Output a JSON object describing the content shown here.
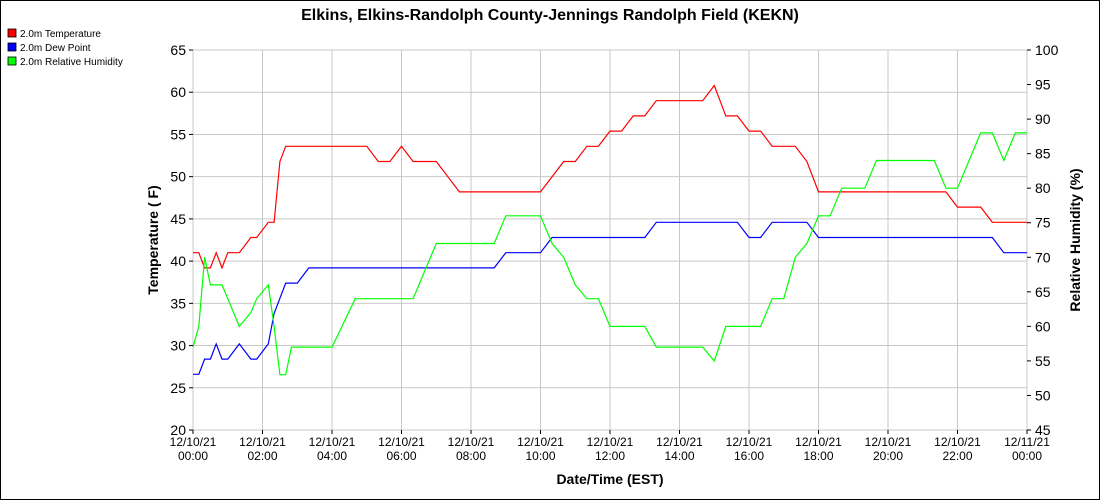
{
  "chart_data": {
    "type": "line",
    "title": "Elkins, Elkins-Randolph County-Jennings Randolph Field (KEKN)",
    "xlabel": "Date/Time (EST)",
    "ylabel": "Temperature ( F)",
    "y2label": "Relative Humidity (%)",
    "ylim": [
      20,
      65
    ],
    "y2lim": [
      45,
      100
    ],
    "yticks": [
      "20",
      "25",
      "30",
      "35",
      "40",
      "45",
      "50",
      "55",
      "60",
      "65"
    ],
    "y2ticks": [
      "45",
      "50",
      "55",
      "60",
      "65",
      "70",
      "75",
      "80",
      "85",
      "90",
      "95",
      "100"
    ],
    "x_ticks": [
      {
        "date": "12/10/21",
        "time": "00:00"
      },
      {
        "date": "12/10/21",
        "time": "02:00"
      },
      {
        "date": "12/10/21",
        "time": "04:00"
      },
      {
        "date": "12/10/21",
        "time": "06:00"
      },
      {
        "date": "12/10/21",
        "time": "08:00"
      },
      {
        "date": "12/10/21",
        "time": "10:00"
      },
      {
        "date": "12/10/21",
        "time": "12:00"
      },
      {
        "date": "12/10/21",
        "time": "14:00"
      },
      {
        "date": "12/10/21",
        "time": "16:00"
      },
      {
        "date": "12/10/21",
        "time": "18:00"
      },
      {
        "date": "12/10/21",
        "time": "20:00"
      },
      {
        "date": "12/10/21",
        "time": "22:00"
      },
      {
        "date": "12/11/21",
        "time": "00:00"
      }
    ],
    "grid": true,
    "legend_position": "top-left",
    "series": [
      {
        "name": "2.0m Temperature",
        "color": "#ff0000",
        "axis": "left",
        "x": [
          "00:00",
          "00:10",
          "00:20",
          "00:30",
          "00:40",
          "00:50",
          "01:00",
          "01:20",
          "01:40",
          "01:50",
          "02:10",
          "02:20",
          "02:30",
          "02:40",
          "02:50",
          "03:00",
          "03:20",
          "04:00",
          "04:40",
          "05:00",
          "05:20",
          "05:40",
          "06:00",
          "06:20",
          "06:40",
          "07:00",
          "07:20",
          "07:40",
          "08:00",
          "08:20",
          "08:40",
          "09:00",
          "09:20",
          "09:40",
          "10:00",
          "10:20",
          "10:40",
          "11:00",
          "11:20",
          "11:40",
          "12:00",
          "12:20",
          "12:40",
          "13:00",
          "13:20",
          "13:40",
          "14:00",
          "14:20",
          "14:40",
          "15:00",
          "15:20",
          "15:40",
          "16:00",
          "16:20",
          "16:40",
          "17:00",
          "17:20",
          "17:40",
          "18:00",
          "18:20",
          "18:40",
          "19:00",
          "19:20",
          "19:40",
          "20:00",
          "20:20",
          "20:40",
          "21:00",
          "21:20",
          "21:40",
          "22:00",
          "22:20",
          "22:40",
          "23:00",
          "23:20",
          "23:40",
          "24:00"
        ],
        "values": [
          41.0,
          41.0,
          39.2,
          39.2,
          41.0,
          39.2,
          41.0,
          41.0,
          42.8,
          42.8,
          44.6,
          44.6,
          51.8,
          53.6,
          53.6,
          53.6,
          53.6,
          53.6,
          53.6,
          53.6,
          51.8,
          51.8,
          53.6,
          51.8,
          51.8,
          51.8,
          50.0,
          48.2,
          48.2,
          48.2,
          48.2,
          48.2,
          48.2,
          48.2,
          48.2,
          50.0,
          51.8,
          51.8,
          53.6,
          53.6,
          55.4,
          55.4,
          57.2,
          57.2,
          59.0,
          59.0,
          59.0,
          59.0,
          59.0,
          60.8,
          57.2,
          57.2,
          55.4,
          55.4,
          53.6,
          53.6,
          53.6,
          51.8,
          48.2,
          48.2,
          48.2,
          48.2,
          48.2,
          48.2,
          48.2,
          48.2,
          48.2,
          48.2,
          48.2,
          48.2,
          46.4,
          46.4,
          46.4,
          44.6,
          44.6,
          44.6,
          44.6
        ]
      },
      {
        "name": "2.0m Dew Point",
        "color": "#0000ff",
        "axis": "left",
        "x": [
          "00:00",
          "00:10",
          "00:20",
          "00:30",
          "00:40",
          "00:50",
          "01:00",
          "01:20",
          "01:40",
          "01:50",
          "02:10",
          "02:20",
          "02:30",
          "02:40",
          "02:50",
          "03:00",
          "03:20",
          "04:00",
          "04:40",
          "05:00",
          "05:20",
          "05:40",
          "06:00",
          "06:20",
          "06:40",
          "07:00",
          "07:20",
          "07:40",
          "08:00",
          "08:20",
          "08:40",
          "09:00",
          "09:20",
          "09:40",
          "10:00",
          "10:20",
          "10:40",
          "11:00",
          "11:20",
          "11:40",
          "12:00",
          "12:20",
          "12:40",
          "13:00",
          "13:20",
          "13:40",
          "14:00",
          "14:20",
          "14:40",
          "15:00",
          "15:20",
          "15:40",
          "16:00",
          "16:20",
          "16:40",
          "17:00",
          "17:20",
          "17:40",
          "18:00",
          "18:20",
          "18:40",
          "19:00",
          "19:20",
          "19:40",
          "20:00",
          "20:20",
          "20:40",
          "21:00",
          "21:20",
          "21:40",
          "22:00",
          "22:20",
          "22:40",
          "23:00",
          "23:20",
          "23:40",
          "24:00"
        ],
        "values": [
          26.6,
          26.6,
          28.4,
          28.4,
          30.2,
          28.4,
          28.4,
          30.2,
          28.4,
          28.4,
          30.2,
          33.8,
          35.6,
          37.4,
          37.4,
          37.4,
          39.2,
          39.2,
          39.2,
          39.2,
          39.2,
          39.2,
          39.2,
          39.2,
          39.2,
          39.2,
          39.2,
          39.2,
          39.2,
          39.2,
          39.2,
          41.0,
          41.0,
          41.0,
          41.0,
          42.8,
          42.8,
          42.8,
          42.8,
          42.8,
          42.8,
          42.8,
          42.8,
          42.8,
          44.6,
          44.6,
          44.6,
          44.6,
          44.6,
          44.6,
          44.6,
          44.6,
          42.8,
          42.8,
          44.6,
          44.6,
          44.6,
          44.6,
          42.8,
          42.8,
          42.8,
          42.8,
          42.8,
          42.8,
          42.8,
          42.8,
          42.8,
          42.8,
          42.8,
          42.8,
          42.8,
          42.8,
          42.8,
          42.8,
          41.0,
          41.0,
          41.0
        ]
      },
      {
        "name": "2.0m Relative Humidity",
        "color": "#00ff00",
        "axis": "right",
        "x": [
          "00:00",
          "00:10",
          "00:20",
          "00:30",
          "00:40",
          "00:50",
          "01:00",
          "01:20",
          "01:40",
          "01:50",
          "02:10",
          "02:20",
          "02:30",
          "02:40",
          "02:50",
          "03:00",
          "03:20",
          "04:00",
          "04:40",
          "05:00",
          "05:20",
          "05:40",
          "06:00",
          "06:20",
          "06:40",
          "07:00",
          "07:20",
          "07:40",
          "08:00",
          "08:20",
          "08:40",
          "09:00",
          "09:20",
          "09:40",
          "10:00",
          "10:20",
          "10:40",
          "11:00",
          "11:20",
          "11:40",
          "12:00",
          "12:20",
          "12:40",
          "13:00",
          "13:20",
          "13:40",
          "14:00",
          "14:20",
          "14:40",
          "15:00",
          "15:20",
          "15:40",
          "16:00",
          "16:20",
          "16:40",
          "17:00",
          "17:20",
          "17:40",
          "18:00",
          "18:20",
          "18:40",
          "19:00",
          "19:20",
          "19:40",
          "20:00",
          "20:20",
          "20:40",
          "21:00",
          "21:20",
          "21:40",
          "22:00",
          "22:20",
          "22:40",
          "23:00",
          "23:20",
          "23:40",
          "24:00"
        ],
        "values": [
          57.0,
          60.0,
          70.0,
          66.0,
          66.0,
          66.0,
          64.0,
          60.0,
          62.0,
          64.0,
          66.0,
          60.0,
          53.0,
          53.0,
          57.0,
          57.0,
          57.0,
          57.0,
          64.0,
          64.0,
          64.0,
          64.0,
          64.0,
          64.0,
          68.0,
          72.0,
          72.0,
          72.0,
          72.0,
          72.0,
          72.0,
          76.0,
          76.0,
          76.0,
          76.0,
          72.0,
          70.0,
          66.0,
          64.0,
          64.0,
          60.0,
          60.0,
          60.0,
          60.0,
          57.0,
          57.0,
          57.0,
          57.0,
          57.0,
          55.0,
          60.0,
          60.0,
          60.0,
          60.0,
          64.0,
          64.0,
          70.0,
          72.0,
          76.0,
          76.0,
          80.0,
          80.0,
          80.0,
          84.0,
          84.0,
          84.0,
          84.0,
          84.0,
          84.0,
          80.0,
          80.0,
          84.0,
          88.0,
          88.0,
          84.0,
          88.0,
          88.0
        ]
      }
    ]
  }
}
